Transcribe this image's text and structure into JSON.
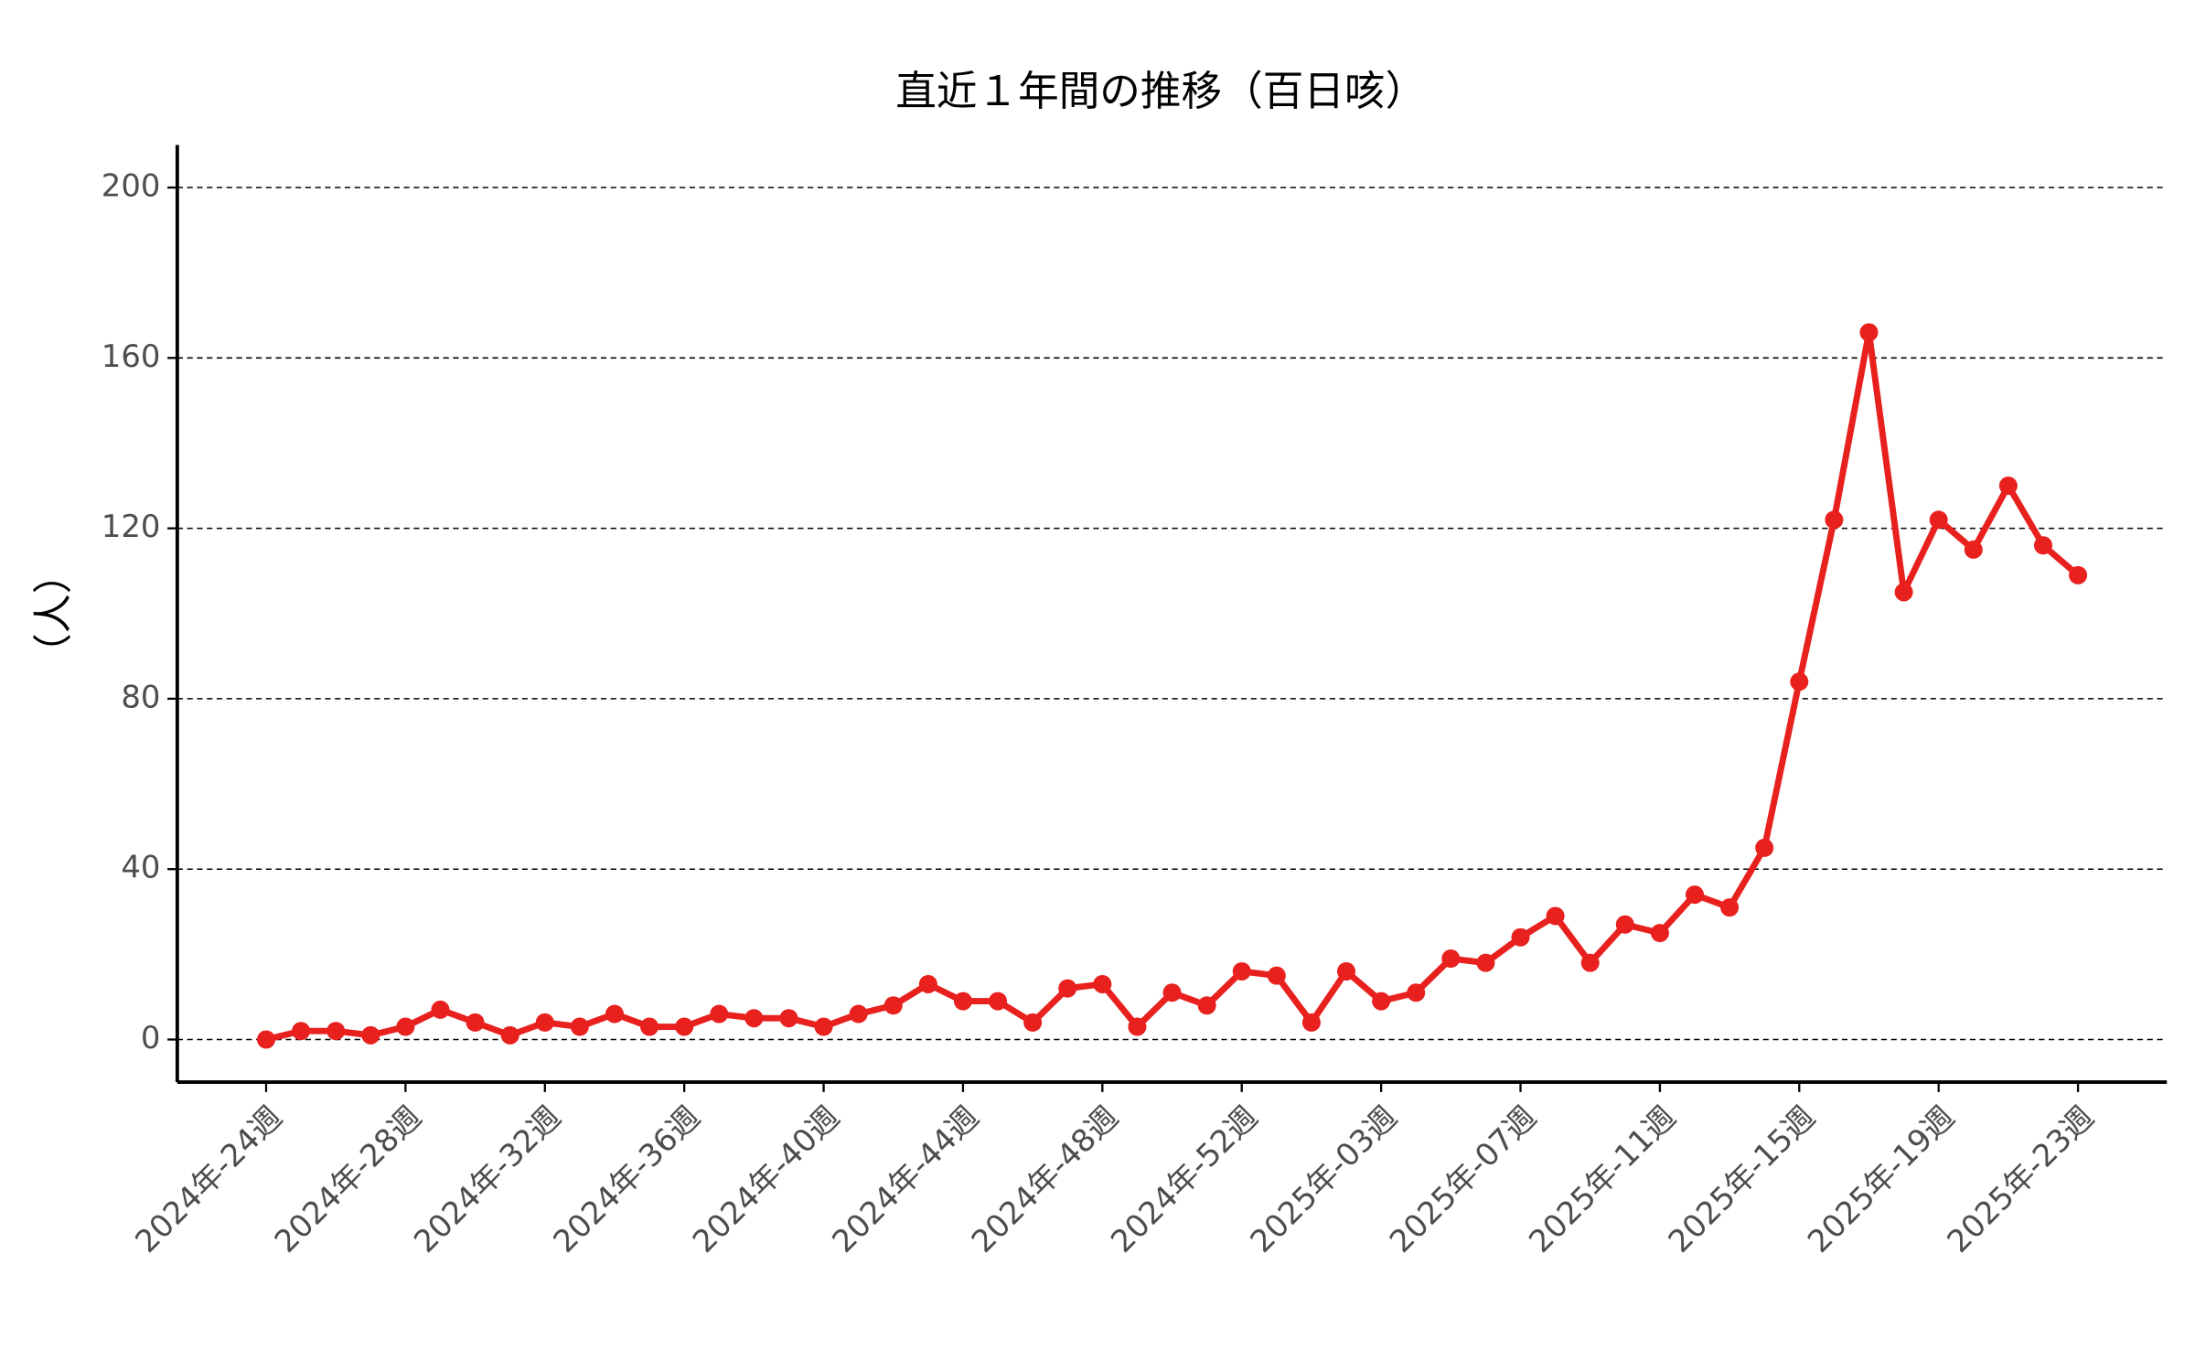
{
  "chart_data": {
    "type": "line",
    "title": "直近１年間の推移（百日咳）",
    "ylabel": "（人）",
    "categories": [
      "2024年-24週",
      null,
      null,
      null,
      "2024年-28週",
      null,
      null,
      null,
      "2024年-32週",
      null,
      null,
      null,
      "2024年-36週",
      null,
      null,
      null,
      "2024年-40週",
      null,
      null,
      null,
      "2024年-44週",
      null,
      null,
      null,
      "2024年-48週",
      null,
      null,
      null,
      "2024年-52週",
      null,
      null,
      null,
      "2025年-03週",
      null,
      null,
      null,
      "2025年-07週",
      null,
      null,
      null,
      "2025年-11週",
      null,
      null,
      null,
      "2025年-15週",
      null,
      null,
      null,
      "2025年-19週",
      null,
      null,
      null,
      "2025年-23週"
    ],
    "values": [
      0,
      2,
      2,
      1,
      3,
      7,
      4,
      1,
      4,
      3,
      6,
      3,
      3,
      6,
      5,
      5,
      3,
      6,
      8,
      13,
      9,
      9,
      4,
      12,
      13,
      3,
      11,
      8,
      16,
      15,
      4,
      16,
      9,
      11,
      19,
      18,
      24,
      29,
      18,
      27,
      25,
      34,
      31,
      45,
      84,
      122,
      166,
      105,
      122,
      115,
      130,
      116,
      109
    ],
    "color": "#e8201e",
    "ylim": [
      -10,
      210
    ],
    "yticks": [
      0,
      40,
      80,
      120,
      160,
      200
    ],
    "grid": true
  }
}
